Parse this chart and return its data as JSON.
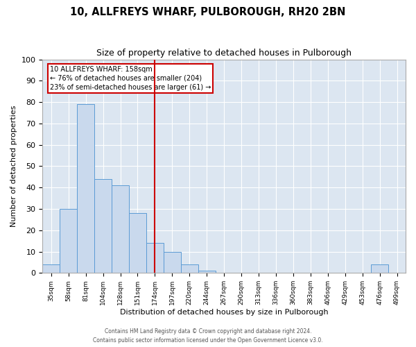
{
  "title": "10, ALLFREYS WHARF, PULBOROUGH, RH20 2BN",
  "subtitle": "Size of property relative to detached houses in Pulborough",
  "xlabel": "Distribution of detached houses by size in Pulborough",
  "ylabel": "Number of detached properties",
  "bin_labels": [
    "35sqm",
    "58sqm",
    "81sqm",
    "104sqm",
    "128sqm",
    "151sqm",
    "174sqm",
    "197sqm",
    "220sqm",
    "244sqm",
    "267sqm",
    "290sqm",
    "313sqm",
    "336sqm",
    "360sqm",
    "383sqm",
    "406sqm",
    "429sqm",
    "453sqm",
    "476sqm",
    "499sqm"
  ],
  "bar_heights": [
    4,
    30,
    79,
    44,
    41,
    28,
    14,
    10,
    4,
    1,
    0,
    0,
    0,
    0,
    0,
    0,
    0,
    0,
    0,
    4,
    0
  ],
  "bar_color": "#c9d9ed",
  "bar_edge_color": "#5b9bd5",
  "property_line_x": 6.0,
  "property_line_color": "#cc0000",
  "annotation_text": "10 ALLFREYS WHARF: 158sqm\n← 76% of detached houses are smaller (204)\n23% of semi-detached houses are larger (61) →",
  "annotation_box_color": "#cc0000",
  "background_color": "#dce6f1",
  "ylim": [
    0,
    100
  ],
  "title_fontsize": 10.5,
  "subtitle_fontsize": 9,
  "footer_line1": "Contains HM Land Registry data © Crown copyright and database right 2024.",
  "footer_line2": "Contains public sector information licensed under the Open Government Licence v3.0."
}
